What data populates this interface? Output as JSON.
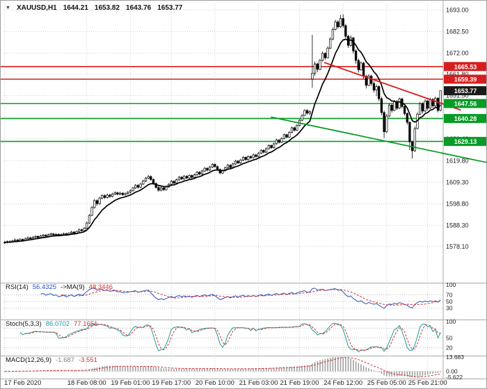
{
  "header": {
    "symbol": "XAUUSD,H1",
    "open": "1644.21",
    "high": "1653.82",
    "low": "1643.76",
    "close": "1653.77"
  },
  "icons": {
    "symbol_marker": "▼"
  },
  "colors": {
    "up": "#ffffff",
    "down": "#000000",
    "wick": "#000000",
    "ma": "#000000",
    "resistance": "#d61e1e",
    "support": "#089b26",
    "current_badge": "#1a1a1a",
    "rsi_line": "#2a52be",
    "stoch_line": "#1f9a9a",
    "signal": "#d32f2f",
    "macd_hist": "#a0a0a0",
    "grid": "#cfcfcf",
    "separator": "#a8a8a8",
    "axis_text": "#222222"
  },
  "panels": {
    "rsi": {
      "name": "RSI(14)",
      "value": "56.4325",
      "ma_label": "->MA(9)",
      "ma_value": "48.3446",
      "scale_labels": [
        "100",
        "70",
        "50",
        "30"
      ],
      "levels": [
        70,
        50,
        30
      ]
    },
    "stoch": {
      "name": "Stoch(5,3,3)",
      "value": "86.0702",
      "signal_value": "77.1651",
      "scale_labels": [
        "100",
        "50",
        "20"
      ],
      "levels": [
        80,
        50,
        20
      ]
    },
    "macd": {
      "name": "MACD(12,26,9)",
      "value": "-1.687",
      "signal_value": "-3.551",
      "scale_labels": [
        "13.683",
        "0.00",
        "-5.622"
      ],
      "range": [
        -5.622,
        13.683
      ]
    }
  },
  "chart_data": {
    "type": "candlestick",
    "symbol": "XAUUSD",
    "timeframe": "H1",
    "current_ohlc": {
      "open": 1644.21,
      "high": 1653.82,
      "low": 1643.76,
      "close": 1653.77
    },
    "price_range": {
      "top": 1695.5,
      "bottom": 1561.5
    },
    "y_axis_labels": [
      "1693.00",
      "1682.50",
      "1672.00",
      "1661.80",
      "1651.50",
      "1640.90",
      "1630.40",
      "1619.80",
      "1609.30",
      "1598.80",
      "1588.30",
      "1578.10"
    ],
    "x_axis_labels": [
      {
        "label": "17 Feb 2020",
        "i": 0
      },
      {
        "label": "18 Feb 08:00",
        "i": 32
      },
      {
        "label": "19 Feb 01:00",
        "i": 49
      },
      {
        "label": "19 Feb 17:00",
        "i": 65
      },
      {
        "label": "20 Feb 10:00",
        "i": 82
      },
      {
        "label": "21 Feb 03:00",
        "i": 99
      },
      {
        "label": "21 Feb 19:00",
        "i": 115
      },
      {
        "label": "24 Feb 12:00",
        "i": 132
      },
      {
        "label": "25 Feb 05:00",
        "i": 149
      },
      {
        "label": "25 Feb 21:00",
        "i": 165
      }
    ],
    "horizontal_levels": {
      "resistance": [
        1665.53,
        1659.39
      ],
      "support": [
        1647.56,
        1640.28,
        1629.13
      ],
      "current_price": 1653.77
    },
    "trendlines": [
      {
        "role": "resistance",
        "x1_frac": 0.732,
        "price1": 1667.5,
        "x2_frac": 1.044,
        "price2": 1644.3
      },
      {
        "role": "support",
        "x1_frac": 0.61,
        "price1": 1641.0,
        "x2_frac": 1.105,
        "price2": 1618.8
      }
    ],
    "overlays": {
      "moving_average": {
        "type": "EMA",
        "period": 10
      }
    },
    "candles": [
      [
        1579.8,
        1580.9,
        1579.2,
        1580.1
      ],
      [
        1580.1,
        1581.0,
        1579.6,
        1580.5
      ],
      [
        1580.5,
        1581.1,
        1579.8,
        1580.2
      ],
      [
        1580.2,
        1581.4,
        1579.9,
        1580.8
      ],
      [
        1580.8,
        1581.9,
        1580.3,
        1581.2
      ],
      [
        1581.2,
        1581.8,
        1580.4,
        1580.9
      ],
      [
        1580.9,
        1582.2,
        1580.5,
        1581.5
      ],
      [
        1581.5,
        1582.0,
        1580.6,
        1581.1
      ],
      [
        1581.1,
        1582.5,
        1580.8,
        1581.8
      ],
      [
        1581.8,
        1583.0,
        1581.3,
        1582.3
      ],
      [
        1582.3,
        1582.9,
        1581.4,
        1581.9
      ],
      [
        1581.9,
        1583.2,
        1581.5,
        1582.6
      ],
      [
        1582.6,
        1583.6,
        1582.0,
        1583.0
      ],
      [
        1583.0,
        1583.5,
        1582.0,
        1582.5
      ],
      [
        1582.5,
        1583.8,
        1582.1,
        1583.2
      ],
      [
        1583.2,
        1584.2,
        1582.7,
        1583.6
      ],
      [
        1583.6,
        1584.1,
        1582.6,
        1583.1
      ],
      [
        1583.1,
        1584.4,
        1582.8,
        1583.8
      ],
      [
        1583.8,
        1584.8,
        1583.3,
        1584.2
      ],
      [
        1584.2,
        1584.7,
        1583.2,
        1583.7
      ],
      [
        1583.7,
        1584.6,
        1583.2,
        1584.0
      ],
      [
        1584.0,
        1584.5,
        1583.0,
        1583.5
      ],
      [
        1583.5,
        1584.5,
        1583.1,
        1583.9
      ],
      [
        1583.9,
        1584.9,
        1583.4,
        1584.3
      ],
      [
        1584.3,
        1584.8,
        1583.3,
        1583.8
      ],
      [
        1583.8,
        1585.1,
        1583.4,
        1584.5
      ],
      [
        1584.5,
        1585.7,
        1584.0,
        1585.1
      ],
      [
        1585.1,
        1585.6,
        1584.1,
        1584.6
      ],
      [
        1584.6,
        1585.9,
        1584.2,
        1585.4
      ],
      [
        1585.4,
        1586.8,
        1585.0,
        1586.2
      ],
      [
        1586.2,
        1586.7,
        1585.2,
        1585.8
      ],
      [
        1585.8,
        1587.5,
        1585.4,
        1586.9
      ],
      [
        1586.9,
        1590.2,
        1586.5,
        1589.5
      ],
      [
        1589.5,
        1593.9,
        1589.1,
        1593.2
      ],
      [
        1593.2,
        1597.8,
        1592.8,
        1597.0
      ],
      [
        1597.0,
        1601.2,
        1596.5,
        1600.4
      ],
      [
        1600.4,
        1601.1,
        1597.9,
        1598.9
      ],
      [
        1598.9,
        1602.3,
        1598.4,
        1601.6
      ],
      [
        1601.6,
        1603.5,
        1601.0,
        1602.8
      ],
      [
        1602.8,
        1603.4,
        1601.2,
        1601.9
      ],
      [
        1601.9,
        1603.8,
        1601.4,
        1603.1
      ],
      [
        1603.1,
        1603.7,
        1601.8,
        1602.4
      ],
      [
        1602.4,
        1604.2,
        1601.9,
        1603.6
      ],
      [
        1603.6,
        1604.9,
        1603.0,
        1604.2
      ],
      [
        1604.2,
        1604.8,
        1602.9,
        1603.5
      ],
      [
        1603.5,
        1604.7,
        1603.0,
        1604.0
      ],
      [
        1604.0,
        1604.5,
        1602.7,
        1603.3
      ],
      [
        1603.3,
        1604.4,
        1602.8,
        1603.8
      ],
      [
        1603.8,
        1605.0,
        1603.3,
        1604.4
      ],
      [
        1604.4,
        1605.8,
        1603.9,
        1605.2
      ],
      [
        1605.2,
        1607.1,
        1604.8,
        1606.5
      ],
      [
        1606.5,
        1608.4,
        1606.0,
        1607.8
      ],
      [
        1607.8,
        1608.3,
        1606.2,
        1606.9
      ],
      [
        1606.9,
        1609.0,
        1606.4,
        1608.4
      ],
      [
        1608.4,
        1610.5,
        1608.0,
        1609.9
      ],
      [
        1609.9,
        1611.9,
        1609.4,
        1611.3
      ],
      [
        1611.3,
        1612.8,
        1610.8,
        1612.1
      ],
      [
        1612.1,
        1612.6,
        1610.0,
        1610.6
      ],
      [
        1610.6,
        1611.2,
        1608.1,
        1608.7
      ],
      [
        1608.7,
        1609.3,
        1606.2,
        1606.8
      ],
      [
        1606.8,
        1607.4,
        1604.7,
        1605.4
      ],
      [
        1605.4,
        1607.2,
        1604.9,
        1606.6
      ],
      [
        1606.6,
        1607.1,
        1605.1,
        1605.7
      ],
      [
        1605.7,
        1607.7,
        1605.2,
        1607.1
      ],
      [
        1607.1,
        1608.9,
        1606.6,
        1608.3
      ],
      [
        1608.3,
        1610.4,
        1607.9,
        1609.8
      ],
      [
        1609.8,
        1610.3,
        1608.3,
        1608.9
      ],
      [
        1608.9,
        1611.1,
        1608.4,
        1610.5
      ],
      [
        1610.5,
        1612.4,
        1610.0,
        1611.8
      ],
      [
        1611.8,
        1612.3,
        1610.3,
        1610.9
      ],
      [
        1610.9,
        1612.8,
        1610.4,
        1612.2
      ],
      [
        1612.2,
        1612.7,
        1610.8,
        1611.4
      ],
      [
        1611.4,
        1613.2,
        1610.9,
        1612.6
      ],
      [
        1612.6,
        1613.1,
        1611.1,
        1611.7
      ],
      [
        1611.7,
        1613.5,
        1611.2,
        1612.9
      ],
      [
        1612.9,
        1614.8,
        1612.4,
        1614.2
      ],
      [
        1614.2,
        1614.7,
        1612.7,
        1613.3
      ],
      [
        1613.3,
        1615.4,
        1612.8,
        1614.8
      ],
      [
        1614.8,
        1616.7,
        1614.3,
        1616.1
      ],
      [
        1616.1,
        1616.6,
        1614.6,
        1615.2
      ],
      [
        1615.2,
        1617.3,
        1614.7,
        1616.7
      ],
      [
        1616.7,
        1618.6,
        1616.2,
        1618.0
      ],
      [
        1618.0,
        1618.5,
        1616.3,
        1616.9
      ],
      [
        1616.9,
        1617.4,
        1614.9,
        1615.5
      ],
      [
        1615.5,
        1616.0,
        1613.2,
        1613.8
      ],
      [
        1613.8,
        1615.5,
        1613.3,
        1614.9
      ],
      [
        1614.9,
        1616.9,
        1614.4,
        1616.3
      ],
      [
        1616.3,
        1618.2,
        1615.8,
        1617.6
      ],
      [
        1617.6,
        1618.1,
        1615.9,
        1616.5
      ],
      [
        1616.5,
        1618.8,
        1616.0,
        1618.2
      ],
      [
        1618.2,
        1620.2,
        1617.7,
        1619.6
      ],
      [
        1619.6,
        1620.1,
        1618.1,
        1618.7
      ],
      [
        1618.7,
        1620.7,
        1618.2,
        1620.1
      ],
      [
        1620.1,
        1622.0,
        1619.6,
        1621.4
      ],
      [
        1621.4,
        1621.9,
        1619.7,
        1620.3
      ],
      [
        1620.3,
        1622.4,
        1619.8,
        1621.8
      ],
      [
        1621.8,
        1622.3,
        1620.6,
        1621.2
      ],
      [
        1621.2,
        1623.2,
        1620.8,
        1622.6
      ],
      [
        1622.6,
        1623.1,
        1621.2,
        1621.8
      ],
      [
        1621.8,
        1624.0,
        1621.4,
        1623.4
      ],
      [
        1623.4,
        1625.4,
        1623.0,
        1624.8
      ],
      [
        1624.8,
        1625.3,
        1623.3,
        1623.9
      ],
      [
        1623.9,
        1626.2,
        1623.5,
        1625.6
      ],
      [
        1625.6,
        1627.8,
        1625.2,
        1627.2
      ],
      [
        1627.2,
        1627.7,
        1625.5,
        1626.1
      ],
      [
        1626.1,
        1628.6,
        1625.7,
        1628.0
      ],
      [
        1628.0,
        1630.4,
        1627.6,
        1629.8
      ],
      [
        1629.8,
        1630.3,
        1628.1,
        1628.7
      ],
      [
        1628.7,
        1631.2,
        1628.3,
        1630.6
      ],
      [
        1630.6,
        1633.0,
        1630.2,
        1632.4
      ],
      [
        1632.4,
        1632.9,
        1630.6,
        1631.2
      ],
      [
        1631.2,
        1634.1,
        1630.8,
        1633.5
      ],
      [
        1633.5,
        1636.4,
        1633.1,
        1635.8
      ],
      [
        1635.8,
        1636.3,
        1634.0,
        1634.6
      ],
      [
        1634.6,
        1637.5,
        1634.2,
        1636.9
      ],
      [
        1636.9,
        1640.0,
        1636.5,
        1639.4
      ],
      [
        1639.4,
        1642.4,
        1639.0,
        1641.8
      ],
      [
        1641.8,
        1644.8,
        1641.4,
        1644.2
      ],
      [
        1644.2,
        1644.7,
        1642.2,
        1642.9
      ],
      [
        1642.9,
        1644.3,
        1641.9,
        1643.6
      ],
      [
        1659.5,
        1680.9,
        1655.2,
        1662.3
      ],
      [
        1662.3,
        1668.0,
        1660.9,
        1666.8
      ],
      [
        1666.8,
        1667.4,
        1662.8,
        1664.2
      ],
      [
        1664.2,
        1669.3,
        1663.7,
        1668.5
      ],
      [
        1668.5,
        1672.8,
        1668.0,
        1671.9
      ],
      [
        1671.9,
        1672.5,
        1668.9,
        1669.8
      ],
      [
        1669.8,
        1675.3,
        1669.4,
        1674.5
      ],
      [
        1674.5,
        1679.8,
        1674.0,
        1678.9
      ],
      [
        1678.9,
        1684.5,
        1678.4,
        1683.6
      ],
      [
        1683.6,
        1688.2,
        1683.1,
        1687.2
      ],
      [
        1687.2,
        1688.0,
        1683.9,
        1684.8
      ],
      [
        1684.8,
        1690.6,
        1684.3,
        1688.9
      ],
      [
        1688.9,
        1690.9,
        1684.4,
        1685.4
      ],
      [
        1685.4,
        1686.2,
        1679.1,
        1680.2
      ],
      [
        1680.2,
        1681.0,
        1674.6,
        1675.8
      ],
      [
        1675.8,
        1680.6,
        1675.2,
        1679.4
      ],
      [
        1679.4,
        1680.0,
        1671.8,
        1673.1
      ],
      [
        1673.1,
        1674.0,
        1666.9,
        1668.5
      ],
      [
        1668.5,
        1669.4,
        1662.6,
        1663.9
      ],
      [
        1663.9,
        1668.1,
        1663.4,
        1667.2
      ],
      [
        1667.2,
        1667.8,
        1659.6,
        1660.8
      ],
      [
        1660.8,
        1661.5,
        1654.9,
        1656.4
      ],
      [
        1656.4,
        1661.8,
        1655.9,
        1660.9
      ],
      [
        1660.9,
        1661.5,
        1656.1,
        1657.3
      ],
      [
        1657.3,
        1658.4,
        1652.9,
        1654.1
      ],
      [
        1654.1,
        1656.9,
        1651.2,
        1655.8
      ],
      [
        1655.8,
        1656.4,
        1648.7,
        1649.9
      ],
      [
        1649.9,
        1650.8,
        1641.9,
        1643.2
      ],
      [
        1643.2,
        1644.1,
        1630.8,
        1633.8
      ],
      [
        1633.8,
        1642.5,
        1633.2,
        1641.5
      ],
      [
        1641.5,
        1647.6,
        1641.0,
        1646.8
      ],
      [
        1646.8,
        1647.4,
        1643.1,
        1644.2
      ],
      [
        1644.2,
        1649.3,
        1643.8,
        1648.6
      ],
      [
        1648.6,
        1649.2,
        1644.4,
        1645.3
      ],
      [
        1645.3,
        1650.5,
        1644.9,
        1649.8
      ],
      [
        1649.8,
        1650.4,
        1645.2,
        1646.1
      ],
      [
        1646.1,
        1646.7,
        1641.8,
        1642.7
      ],
      [
        1642.7,
        1643.3,
        1637.2,
        1638.4
      ],
      [
        1638.4,
        1639.0,
        1624.9,
        1628.9
      ],
      [
        1628.9,
        1629.5,
        1620.8,
        1624.6
      ],
      [
        1624.6,
        1636.5,
        1624.1,
        1635.4
      ],
      [
        1635.4,
        1643.2,
        1635.0,
        1642.4
      ],
      [
        1642.4,
        1648.3,
        1641.9,
        1647.5
      ],
      [
        1647.5,
        1648.1,
        1642.7,
        1643.9
      ],
      [
        1643.9,
        1649.6,
        1643.4,
        1648.8
      ],
      [
        1648.8,
        1649.4,
        1644.2,
        1645.3
      ],
      [
        1645.3,
        1650.4,
        1644.9,
        1649.6
      ],
      [
        1649.6,
        1650.2,
        1645.4,
        1646.4
      ],
      [
        1646.4,
        1650.9,
        1645.9,
        1650.1
      ],
      [
        1650.1,
        1650.7,
        1643.3,
        1644.2
      ],
      [
        1644.21,
        1653.82,
        1643.76,
        1653.77
      ]
    ]
  }
}
